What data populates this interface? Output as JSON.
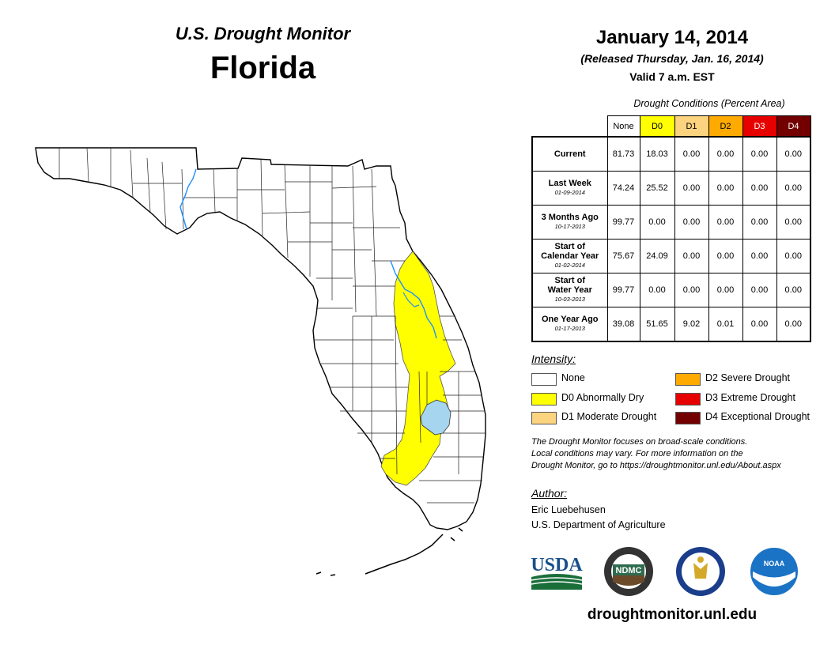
{
  "header": {
    "subtitle": "U.S. Drought Monitor",
    "state": "Florida",
    "date": "January 14, 2014",
    "released": "(Released Thursday, Jan. 16, 2014)",
    "valid": "Valid 7 a.m. EST"
  },
  "table": {
    "caption": "Drought Conditions (Percent Area)",
    "columns": [
      "None",
      "D0",
      "D1",
      "D2",
      "D3",
      "D4"
    ],
    "column_colors": [
      "#ffffff",
      "#ffff00",
      "#fcd37f",
      "#ffaa00",
      "#e60000",
      "#730000"
    ],
    "column_text_colors": [
      "#000000",
      "#000000",
      "#000000",
      "#000000",
      "#ffffff",
      "#ffffff"
    ],
    "rows": [
      {
        "label_line1": "Current",
        "label_line2": "",
        "date": "",
        "values": [
          "81.73",
          "18.03",
          "0.00",
          "0.00",
          "0.00",
          "0.00"
        ]
      },
      {
        "label_line1": "Last Week",
        "label_line2": "",
        "date": "01-09-2014",
        "values": [
          "74.24",
          "25.52",
          "0.00",
          "0.00",
          "0.00",
          "0.00"
        ]
      },
      {
        "label_line1": "3 Months Ago",
        "label_line2": "",
        "date": "10-17-2013",
        "values": [
          "99.77",
          "0.00",
          "0.00",
          "0.00",
          "0.00",
          "0.00"
        ]
      },
      {
        "label_line1": "Start of",
        "label_line2": "Calendar Year",
        "date": "01-02-2014",
        "values": [
          "75.67",
          "24.09",
          "0.00",
          "0.00",
          "0.00",
          "0.00"
        ]
      },
      {
        "label_line1": "Start of",
        "label_line2": "Water Year",
        "date": "10-03-2013",
        "values": [
          "99.77",
          "0.00",
          "0.00",
          "0.00",
          "0.00",
          "0.00"
        ]
      },
      {
        "label_line1": "One Year Ago",
        "label_line2": "",
        "date": "01-17-2013",
        "values": [
          "39.08",
          "51.65",
          "9.02",
          "0.01",
          "0.00",
          "0.00"
        ]
      }
    ]
  },
  "legend": {
    "title": "Intensity:",
    "items": [
      {
        "label": "None",
        "color": "#ffffff"
      },
      {
        "label": "D0 Abnormally Dry",
        "color": "#ffff00"
      },
      {
        "label": "D1 Moderate Drought",
        "color": "#fcd37f"
      },
      {
        "label": "D2 Severe Drought",
        "color": "#ffaa00"
      },
      {
        "label": "D3 Extreme Drought",
        "color": "#e60000"
      },
      {
        "label": "D4 Exceptional Drought",
        "color": "#730000"
      }
    ]
  },
  "note": {
    "line1": "The Drought Monitor focuses on broad-scale conditions.",
    "line2": "Local conditions may vary. For more information on the",
    "line3": "Drought Monitor, go to https://droughtmonitor.unl.edu/About.aspx"
  },
  "author": {
    "label": "Author:",
    "name": "Eric Luebehusen",
    "org": "U.S. Department of Agriculture"
  },
  "logos": {
    "usda": "USDA",
    "ndmc": "NDMC",
    "noaa": "NOAA"
  },
  "website": "droughtmonitor.unl.edu",
  "map": {
    "land_color": "#ffffff",
    "drought_color": "#ffff00",
    "water_color": "#a6d5ef",
    "river_color": "#1e90ff"
  }
}
